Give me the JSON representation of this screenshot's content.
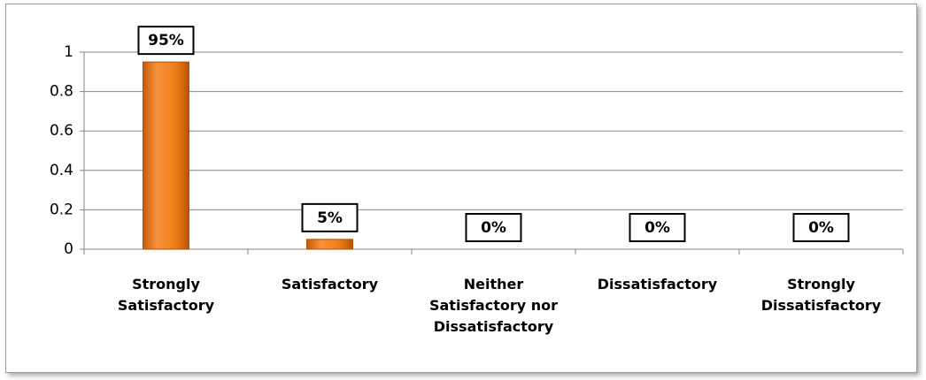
{
  "chart_data": {
    "type": "bar",
    "categories": [
      "Strongly Satisfactory",
      "Satisfactory",
      "Neither Satisfactory nor Dissatisfactory",
      "Dissatisfactory",
      "Strongly Dissatisfactory"
    ],
    "values": [
      0.95,
      0.05,
      0,
      0,
      0
    ],
    "value_labels": [
      "95%",
      "5%",
      "0%",
      "0%",
      "0%"
    ],
    "color": "#f07f1a",
    "ylim": [
      0,
      1
    ],
    "yticks": [
      0,
      0.2,
      0.4,
      0.6,
      0.8,
      1
    ],
    "grid": true
  }
}
